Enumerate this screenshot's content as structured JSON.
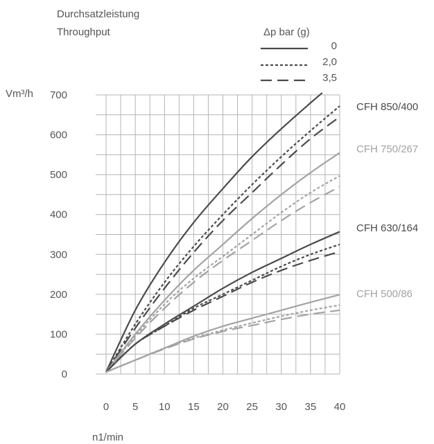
{
  "chart_data": {
    "type": "line",
    "title": "Durchsatzleistung",
    "subtitle": "Throughput",
    "xlabel": "n1/min",
    "ylabel": "Vm³/h",
    "xlim": [
      0,
      40
    ],
    "ylim": [
      0,
      700
    ],
    "x_ticks": [
      "0",
      "5",
      "10",
      "15",
      "20",
      "25",
      "30",
      "35",
      "40"
    ],
    "y_ticks": [
      "0",
      "100",
      "200",
      "300",
      "400",
      "500",
      "600",
      "700"
    ],
    "grid": true,
    "legend": {
      "title": "Δp bar (g)",
      "placement": "top-right",
      "entries": [
        {
          "label": "0",
          "dash": "solid"
        },
        {
          "label": "2,0",
          "dash": "dotted"
        },
        {
          "label": "3,5",
          "dash": "dashed"
        }
      ]
    },
    "models": [
      {
        "name": "CFH 850/400",
        "color": "#4a4a4a"
      },
      {
        "name": "CFH 750/267",
        "color": "#a3a3a3"
      },
      {
        "name": "CFH 630/164",
        "color": "#4a4a4a"
      },
      {
        "name": "CFH 500/86",
        "color": "#a3a3a3"
      }
    ],
    "series": [
      {
        "model": 0,
        "dash": "solid",
        "x": [
          0,
          5,
          10,
          15,
          20,
          25,
          30,
          35,
          37
        ],
        "y": [
          5,
          160,
          280,
          380,
          465,
          545,
          615,
          680,
          705
        ]
      },
      {
        "model": 0,
        "dash": "dotted",
        "x": [
          0,
          5,
          10,
          15,
          20,
          25,
          30,
          35,
          40
        ],
        "y": [
          5,
          125,
          230,
          320,
          400,
          475,
          545,
          610,
          672
        ]
      },
      {
        "model": 0,
        "dash": "dashed",
        "x": [
          0,
          5,
          10,
          15,
          20,
          25,
          30,
          35,
          40
        ],
        "y": [
          5,
          115,
          215,
          305,
          385,
          455,
          525,
          590,
          645
        ]
      },
      {
        "model": 1,
        "dash": "solid",
        "x": [
          0,
          5,
          10,
          15,
          20,
          25,
          30,
          35,
          40
        ],
        "y": [
          5,
          100,
          185,
          260,
          325,
          390,
          450,
          505,
          555
        ]
      },
      {
        "model": 1,
        "dash": "dotted",
        "x": [
          0,
          5,
          10,
          15,
          20,
          25,
          30,
          35,
          40
        ],
        "y": [
          5,
          95,
          175,
          240,
          295,
          350,
          405,
          455,
          497
        ]
      },
      {
        "model": 1,
        "dash": "dashed",
        "x": [
          0,
          5,
          10,
          15,
          20,
          25,
          30,
          35,
          40
        ],
        "y": [
          5,
          90,
          165,
          230,
          285,
          335,
          385,
          430,
          470
        ]
      },
      {
        "model": 2,
        "dash": "solid",
        "x": [
          0,
          5,
          10,
          15,
          20,
          25,
          30,
          35,
          40
        ],
        "y": [
          5,
          75,
          125,
          170,
          215,
          255,
          290,
          325,
          357
        ]
      },
      {
        "model": 2,
        "dash": "dotted",
        "x": [
          0,
          5,
          10,
          15,
          20,
          25,
          30,
          35,
          40
        ],
        "y": [
          5,
          75,
          120,
          165,
          200,
          235,
          270,
          300,
          325
        ]
      },
      {
        "model": 2,
        "dash": "dashed",
        "x": [
          0,
          5,
          10,
          15,
          20,
          25,
          30,
          35,
          40
        ],
        "y": [
          5,
          75,
          120,
          160,
          195,
          230,
          260,
          285,
          307
        ]
      },
      {
        "model": 3,
        "dash": "solid",
        "x": [
          0,
          5,
          10,
          15,
          20,
          25,
          30,
          35,
          40
        ],
        "y": [
          5,
          35,
          65,
          95,
          120,
          140,
          160,
          180,
          199
        ]
      },
      {
        "model": 3,
        "dash": "dotted",
        "x": [
          0,
          5,
          10,
          15,
          20,
          25,
          30,
          35,
          40
        ],
        "y": [
          5,
          35,
          65,
          90,
          110,
          128,
          145,
          160,
          173
        ]
      },
      {
        "model": 3,
        "dash": "dashed",
        "x": [
          0,
          5,
          10,
          15,
          20,
          25,
          30,
          35,
          40
        ],
        "y": [
          5,
          35,
          63,
          88,
          107,
          122,
          137,
          150,
          160
        ]
      }
    ]
  }
}
